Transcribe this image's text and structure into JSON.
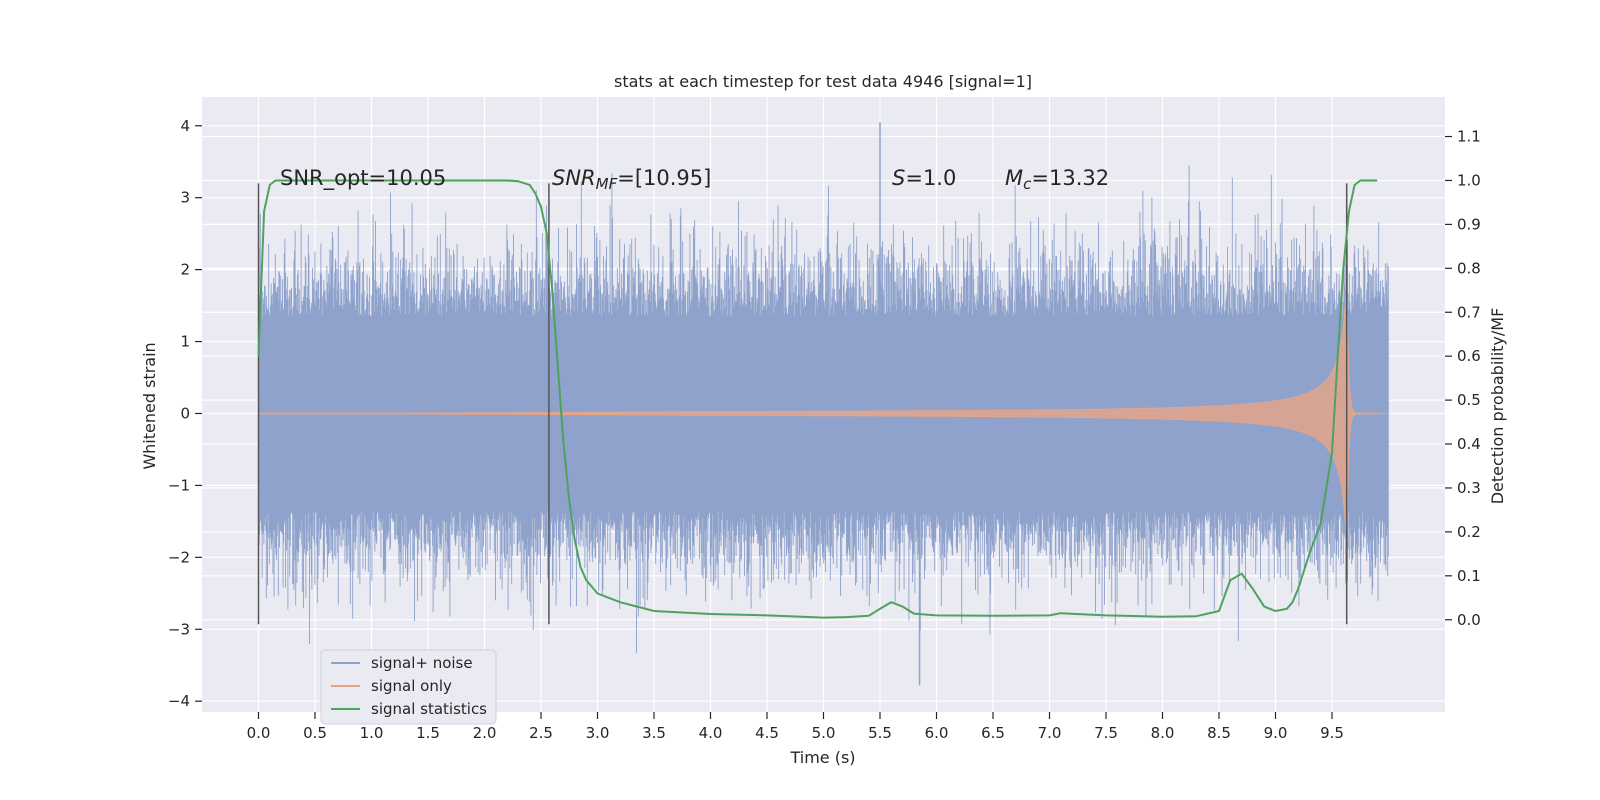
{
  "chart_data": {
    "type": "line",
    "title": "stats at each timestep for test data 4946 [signal=1]",
    "xlabel": "Time (s)",
    "ylabel": "Whitened strain",
    "ylabel_right": "Detection probability/MF",
    "xlim": [
      -0.5,
      10.5
    ],
    "ylim": [
      -4.15,
      4.4
    ],
    "ylim_right": [
      -0.21,
      1.19
    ],
    "x_ticks": [
      0.0,
      0.5,
      1.0,
      1.5,
      2.0,
      2.5,
      3.0,
      3.5,
      4.0,
      4.5,
      5.0,
      5.5,
      6.0,
      6.5,
      7.0,
      7.5,
      8.0,
      8.5,
      9.0,
      9.5
    ],
    "x_tick_labels": [
      "0.0",
      "0.5",
      "1.0",
      "1.5",
      "2.0",
      "2.5",
      "3.0",
      "3.5",
      "4.0",
      "4.5",
      "5.0",
      "5.5",
      "6.0",
      "6.5",
      "7.0",
      "7.5",
      "8.0",
      "8.5",
      "9.0",
      "9.5"
    ],
    "y_ticks": [
      4,
      3,
      2,
      1,
      0,
      -1,
      -2,
      -3,
      -4
    ],
    "y_tick_labels": [
      "4",
      "3",
      "2",
      "1",
      "0",
      "−1",
      "−2",
      "−3",
      "−4"
    ],
    "y_right_ticks": [
      1.1,
      1.0,
      0.9,
      0.8,
      0.7,
      0.6,
      0.5,
      0.4,
      0.3,
      0.2,
      0.1,
      0.0
    ],
    "y_right_tick_labels": [
      "1.1",
      "1.0",
      "0.9",
      "0.8",
      "0.7",
      "0.6",
      "0.5",
      "0.4",
      "0.3",
      "0.2",
      "0.1",
      "0.0"
    ],
    "grid": true,
    "legend_position": "lower-left",
    "annotations": {
      "snr_opt": "SNR_opt=10.05",
      "snr_mf_label": "SNR",
      "snr_mf_sub": "MF",
      "snr_mf_value": "=[10.95]",
      "s_label": "S",
      "s_value": "=1.0",
      "mc_label": "M",
      "mc_sub": "c",
      "mc_value": "=13.32"
    },
    "vertical_markers": [
      {
        "x": 0.0,
        "y_top": 3.2,
        "y_bottom": -2.93
      },
      {
        "x": 2.57,
        "y_top": 3.2,
        "y_bottom": -2.93
      },
      {
        "x": 9.63,
        "y_top": 3.2,
        "y_bottom": -2.93
      }
    ],
    "series": [
      {
        "name": "signal+ noise",
        "color": "#8ea2cc",
        "kind": "noise",
        "x_range": [
          0.0,
          10.0
        ],
        "typical_envelope": 1.35,
        "max": 4.05,
        "min": -3.78
      },
      {
        "name": "signal only",
        "color": "#e3a58a",
        "kind": "chirp",
        "merger_time": 9.63,
        "peak_amplitude": 2.2
      },
      {
        "name": "signal statistics",
        "color": "#4fa25e",
        "axis": "right",
        "x": [
          0.0,
          0.05,
          0.1,
          0.15,
          0.2,
          0.3,
          0.5,
          1.0,
          1.5,
          2.0,
          2.2,
          2.3,
          2.4,
          2.45,
          2.5,
          2.55,
          2.6,
          2.65,
          2.7,
          2.75,
          2.8,
          2.85,
          2.9,
          3.0,
          3.2,
          3.5,
          4.0,
          4.5,
          5.0,
          5.2,
          5.4,
          5.5,
          5.6,
          5.7,
          5.8,
          6.0,
          6.5,
          7.0,
          7.1,
          7.5,
          8.0,
          8.3,
          8.5,
          8.6,
          8.7,
          8.8,
          8.9,
          9.0,
          9.1,
          9.15,
          9.2,
          9.3,
          9.4,
          9.5,
          9.55,
          9.6,
          9.65,
          9.7,
          9.75,
          9.8,
          9.9
        ],
        "values": [
          0.6,
          0.93,
          0.99,
          1.0,
          1.0,
          1.0,
          1.0,
          1.0,
          1.0,
          1.0,
          1.0,
          0.998,
          0.99,
          0.97,
          0.94,
          0.88,
          0.75,
          0.57,
          0.4,
          0.27,
          0.18,
          0.12,
          0.09,
          0.06,
          0.04,
          0.02,
          0.013,
          0.01,
          0.005,
          0.006,
          0.009,
          0.025,
          0.04,
          0.03,
          0.014,
          0.01,
          0.009,
          0.01,
          0.015,
          0.01,
          0.007,
          0.008,
          0.02,
          0.09,
          0.105,
          0.07,
          0.03,
          0.02,
          0.025,
          0.04,
          0.07,
          0.15,
          0.22,
          0.38,
          0.6,
          0.8,
          0.93,
          0.99,
          1.0,
          1.0,
          1.0
        ]
      }
    ]
  }
}
